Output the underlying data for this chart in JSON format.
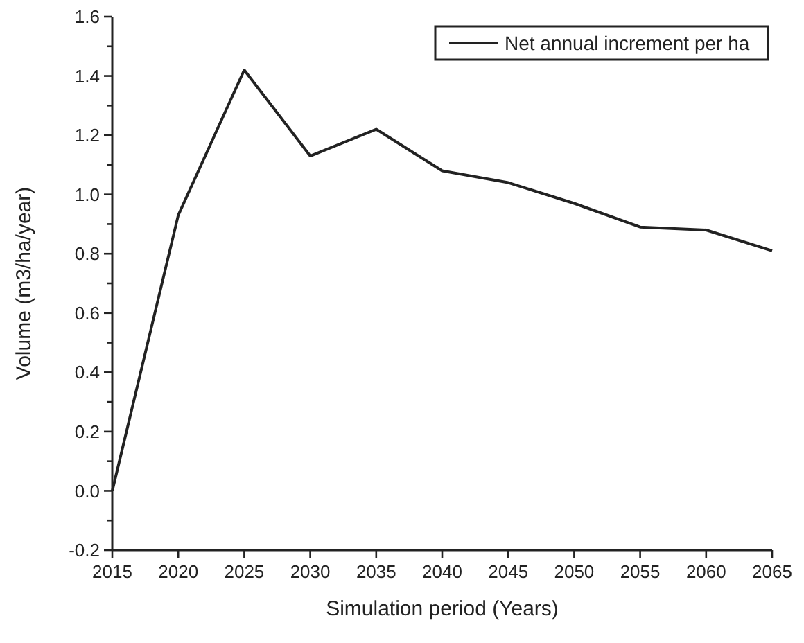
{
  "chart_data": {
    "type": "line",
    "xlabel": "Simulation period (Years)",
    "ylabel": "Volume (m3/ha/year)",
    "x": [
      2015,
      2020,
      2025,
      2030,
      2035,
      2040,
      2045,
      2050,
      2055,
      2060,
      2065
    ],
    "series": [
      {
        "name": "Net annual increment per ha",
        "color": "#222222",
        "values": [
          0.0,
          0.93,
          1.42,
          1.13,
          1.22,
          1.08,
          1.04,
          0.97,
          0.89,
          0.88,
          0.81
        ]
      }
    ],
    "xlim": [
      2015,
      2065
    ],
    "xticks": [
      2015,
      2020,
      2025,
      2030,
      2035,
      2040,
      2045,
      2050,
      2055,
      2060,
      2065
    ],
    "ylim": [
      -0.2,
      1.6
    ],
    "yticks": [
      {
        "value": -0.2,
        "label": "-0.2"
      },
      {
        "value": -0.1,
        "label": null
      },
      {
        "value": 0,
        "label": "0.0"
      },
      {
        "value": 0.1,
        "label": null
      },
      0.2,
      {
        "value": 0.3,
        "label": null
      },
      0.4,
      {
        "value": 0.5,
        "label": null
      },
      0.6,
      {
        "value": 0.7,
        "label": null
      },
      0.8,
      {
        "value": 0.9,
        "label": null
      },
      {
        "value": 1,
        "label": "1.0"
      },
      {
        "value": 1.1,
        "label": null
      },
      1.2,
      {
        "value": 1.3,
        "label": null
      },
      1.4,
      {
        "value": 1.5,
        "label": null
      },
      1.6
    ],
    "legend": "top right",
    "marker": "none",
    "line_style": "solid",
    "grid": false
  }
}
